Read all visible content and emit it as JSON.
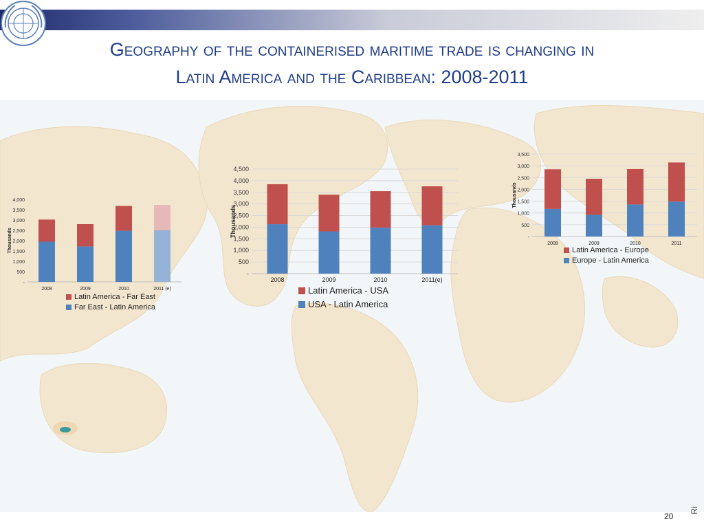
{
  "slide": {
    "title_line1": "Geography of the containerised maritime trade is changing in",
    "title_line2": "Latin America and the Caribbean: 2008-2011",
    "page_number": "20",
    "side_text": "Ri"
  },
  "colors": {
    "red": "#c0504d",
    "blue": "#4f81bd",
    "light_red": "#e6b9b8",
    "light_blue": "#95b3d7",
    "title": "#1f3d8a"
  },
  "chart_data": [
    {
      "type": "bar",
      "stacked": true,
      "ylabel": "Thousands",
      "categories": [
        "2008",
        "2009",
        "2010",
        "2011 (e)"
      ],
      "ylim": [
        0,
        4000
      ],
      "yticks": [
        "-",
        "500",
        "1,000",
        "1,500",
        "2,000",
        "2,500",
        "3,000",
        "3,500",
        "4,000"
      ],
      "series": [
        {
          "name": "Far East - Latin America",
          "values": [
            1950,
            1720,
            2480,
            2500
          ]
        },
        {
          "name": "Latin America - Far East",
          "values": [
            1070,
            1080,
            1200,
            1230
          ]
        }
      ],
      "estimated_last": true,
      "legend": "bottom",
      "grid": false
    },
    {
      "type": "bar",
      "stacked": true,
      "ylabel": "Thousands",
      "categories": [
        "2008",
        "2009",
        "2010",
        "2011(e)"
      ],
      "ylim": [
        0,
        4500
      ],
      "yticks": [
        "-",
        "500",
        "1,000",
        "1,500",
        "2,000",
        "2,500",
        "3,000",
        "3,500",
        "4,000",
        "4,500"
      ],
      "series": [
        {
          "name": "USA - Latin America",
          "values": [
            2130,
            1820,
            1980,
            2080
          ]
        },
        {
          "name": "Latin America - USA",
          "values": [
            1720,
            1580,
            1570,
            1680
          ]
        }
      ],
      "estimated_last": false,
      "legend": "bottom",
      "grid": true
    },
    {
      "type": "bar",
      "stacked": true,
      "ylabel": "Thousands",
      "categories": [
        "2008",
        "2009",
        "2010",
        "2011"
      ],
      "ylim": [
        0,
        3500
      ],
      "yticks": [
        "-",
        "500",
        "1,000",
        "1,500",
        "2,000",
        "2,500",
        "3,000",
        "3,500"
      ],
      "series": [
        {
          "name": "Europe - Latin America",
          "values": [
            1170,
            920,
            1360,
            1480
          ]
        },
        {
          "name": "Latin America - Europe",
          "values": [
            1680,
            1530,
            1500,
            1660
          ]
        }
      ],
      "estimated_last": false,
      "legend": "bottom",
      "grid": true
    }
  ]
}
